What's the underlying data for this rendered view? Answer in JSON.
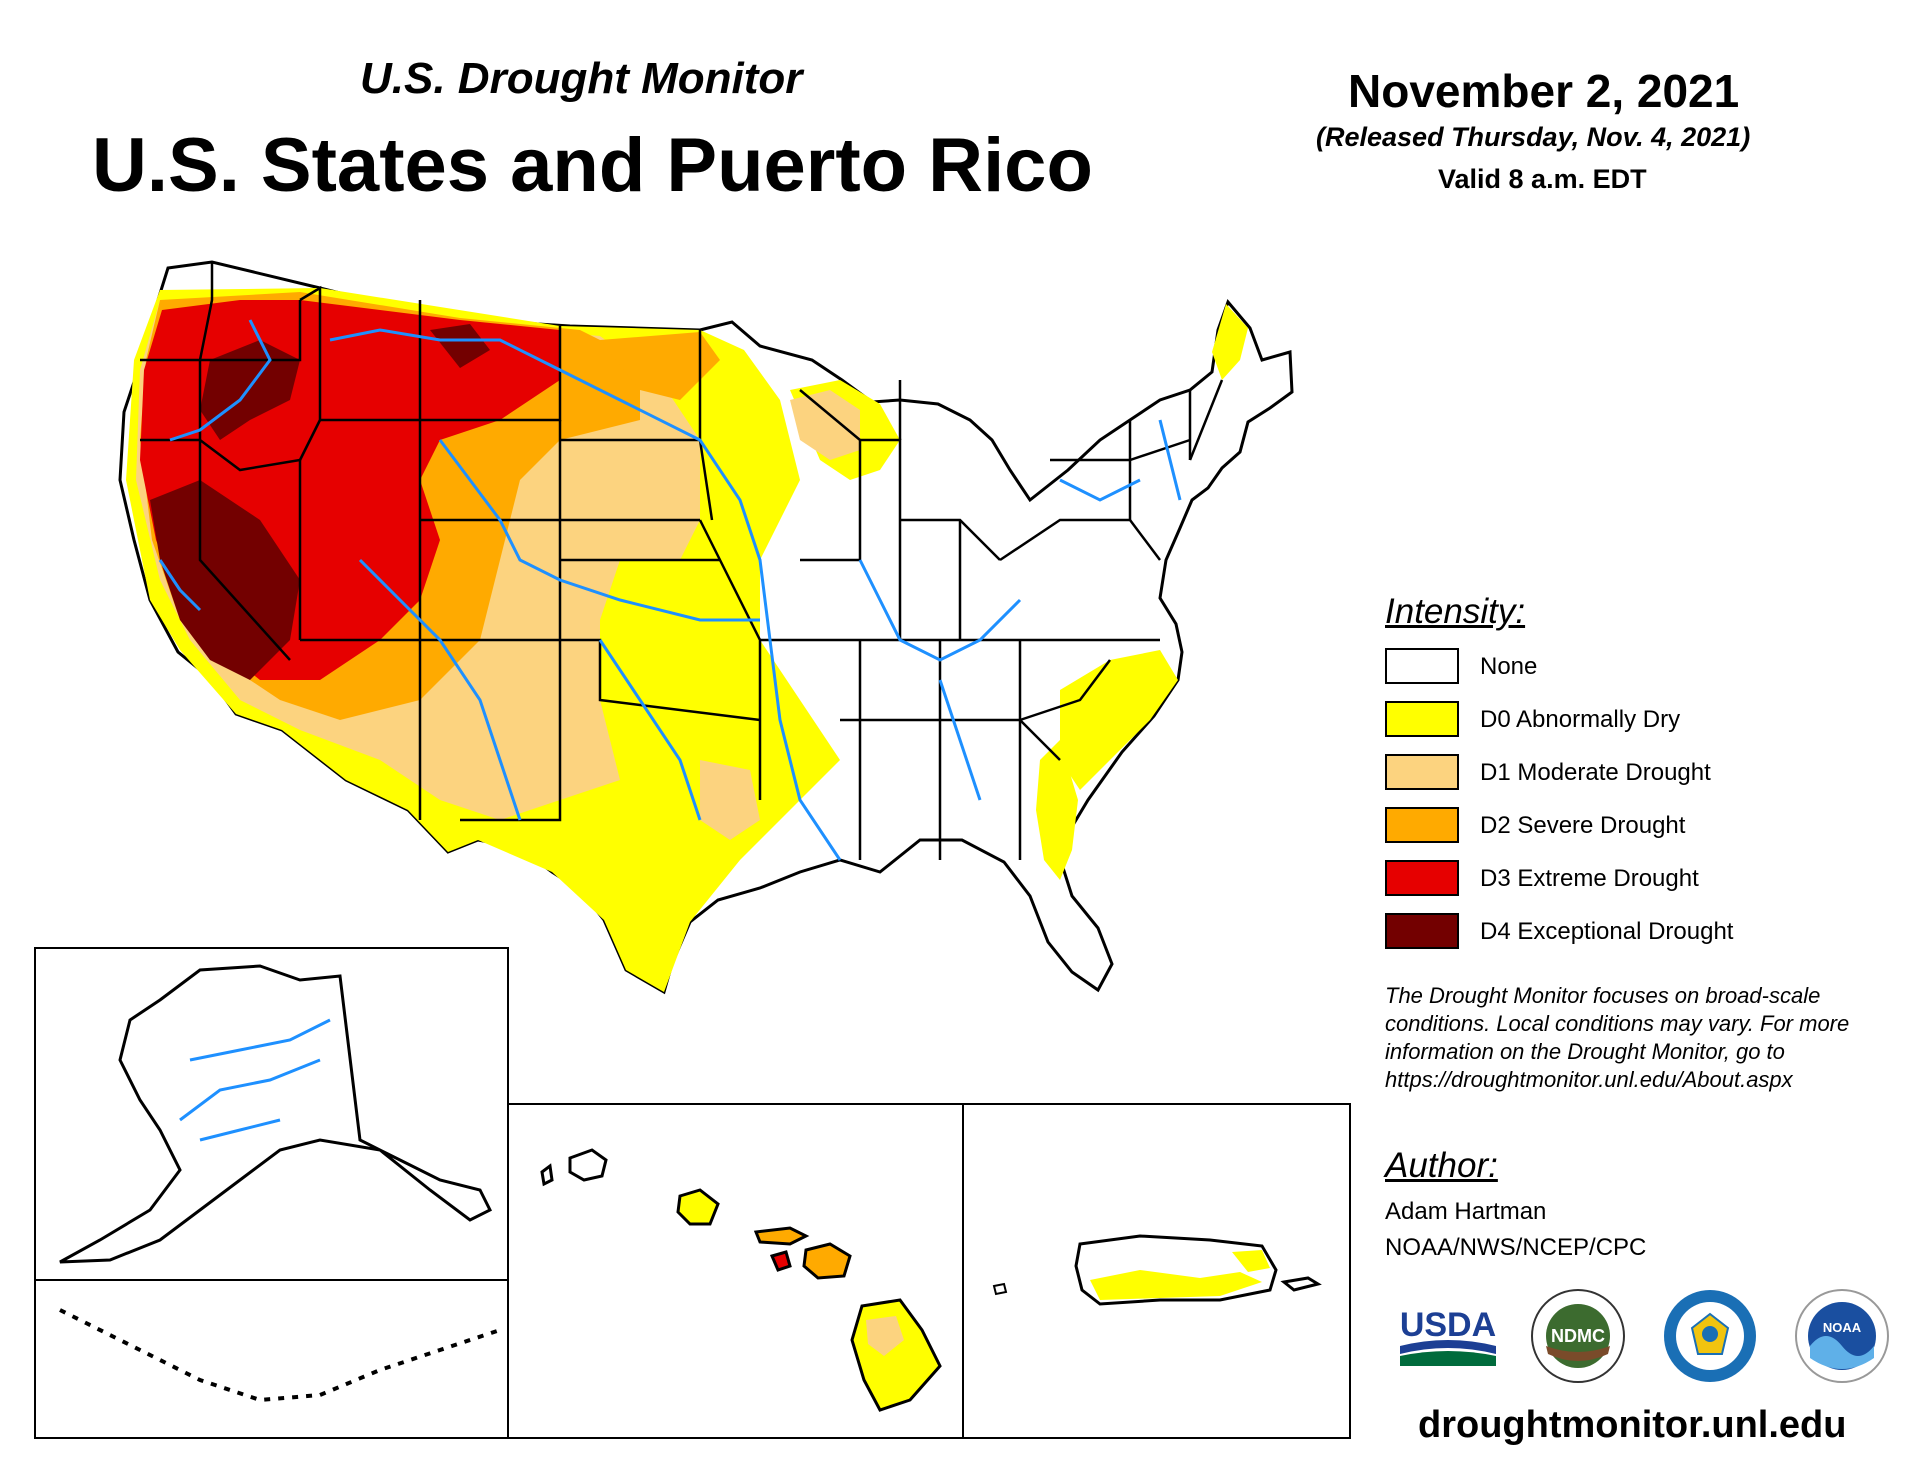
{
  "header": {
    "subtitle": "U.S. Drought Monitor",
    "title": "U.S. States and Puerto Rico",
    "date": "November 2, 2021",
    "released": "(Released Thursday, Nov. 4, 2021)",
    "valid": "Valid 8 a.m. EDT"
  },
  "legend": {
    "heading": "Intensity:",
    "items": [
      {
        "label": "None",
        "color": "#ffffff"
      },
      {
        "label": "D0 Abnormally Dry",
        "color": "#ffff00"
      },
      {
        "label": "D1 Moderate Drought",
        "color": "#fcd37f"
      },
      {
        "label": "D2 Severe Drought",
        "color": "#ffaa00"
      },
      {
        "label": "D3 Extreme Drought",
        "color": "#e60000"
      },
      {
        "label": "D4 Exceptional Drought",
        "color": "#730000"
      }
    ]
  },
  "note": {
    "line1": "The Drought Monitor focuses on broad-scale",
    "line2": "conditions. Local conditions may vary. For more",
    "line3": "information on the Drought Monitor, go to",
    "line4": "https://droughtmonitor.unl.edu/About.aspx"
  },
  "author": {
    "heading": "Author:",
    "name": "Adam Hartman",
    "org": "NOAA/NWS/NCEP/CPC"
  },
  "logos": {
    "usda": "USDA",
    "ndmc": "NDMC",
    "noaa": "NOAA"
  },
  "website": "droughtmonitor.unl.edu",
  "colors": {
    "river": "#1e90ff",
    "border": "#000000"
  }
}
